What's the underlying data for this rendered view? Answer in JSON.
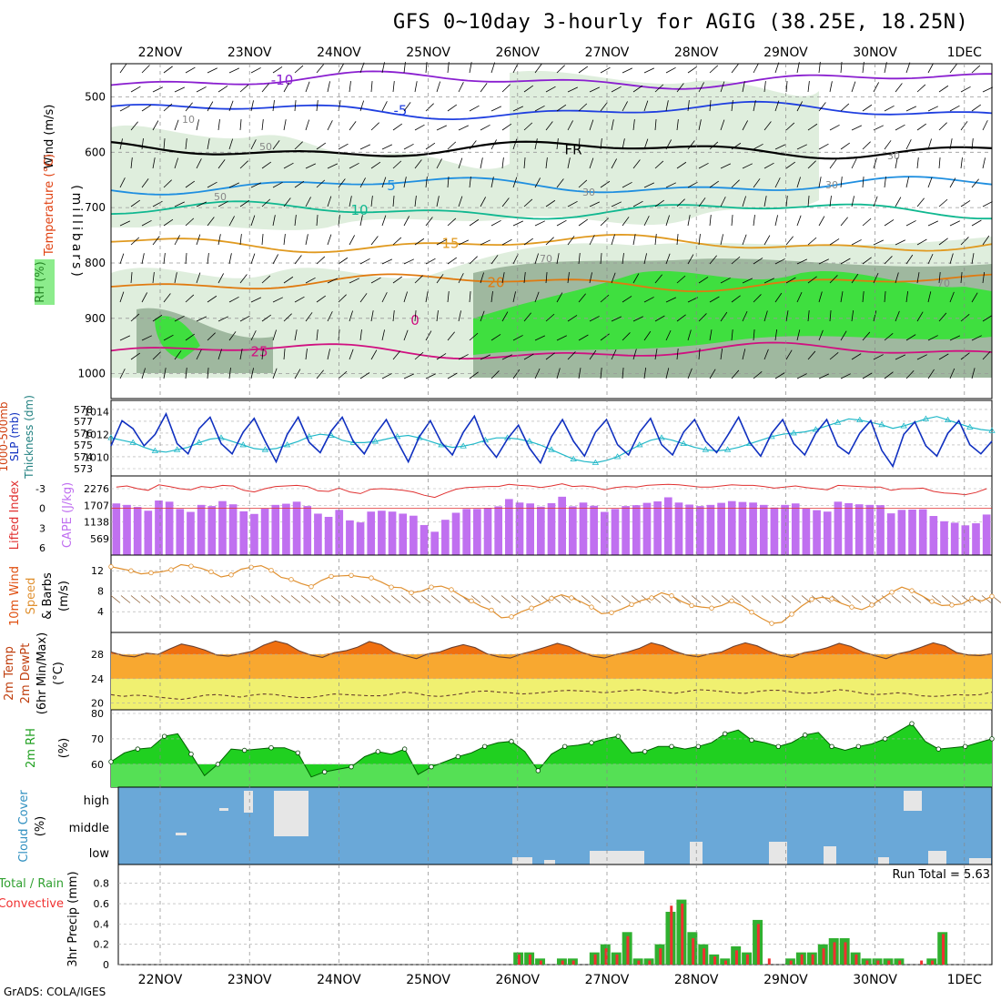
{
  "title": "GFS 0~10day 3-hourly for AGIG (38.25E, 18.25N)",
  "credit": "GrADS: COLA/IGES",
  "dates": [
    "22NOV",
    "23NOV",
    "24NOV",
    "25NOV",
    "26NOV",
    "27NOV",
    "28NOV",
    "29NOV",
    "30NOV",
    "1DEC"
  ],
  "colors": {
    "temp_minus10": "#8a1fd0",
    "temp_minus5": "#1f3fe0",
    "temp_fr": "#000000",
    "temp_5": "#1f8fe0",
    "temp_10": "#10b890",
    "temp_15": "#e09a20",
    "temp_20": "#e07a10",
    "temp_25": "#d01080",
    "rh_light": "#dfeedd",
    "rh_mid": "#9fb89f",
    "rh_green": "#3fdf3f",
    "slp": "#1030c0",
    "thickness": "#20b8c8",
    "cape": "#c070f0",
    "lifted": "#e03030",
    "wind10": "#e09030",
    "barb10": "#8a5a30",
    "temp_fill": "#f07010",
    "temp_band": "#f8a830",
    "dew_band": "#f0f070",
    "rh2m": "#20d020",
    "cloud_bg": "#6aa8d8",
    "cloud_fg": "#e6e6e6",
    "rain": "#30b030",
    "conv": "#f03030"
  },
  "chart_data": [
    {
      "type": "contour",
      "panel": "upper-air",
      "ylabel_parts": [
        "Wind (m/s)",
        "Temperature (°C)",
        "RH (%)",
        "(millibars)"
      ],
      "yticks": [
        500,
        600,
        700,
        800,
        900,
        1000
      ],
      "temperature_labels": [
        "-10",
        "-5",
        "FR",
        "5",
        "10",
        "15",
        "20",
        "25"
      ],
      "rh_labels": [
        "10",
        "30",
        "50",
        "70"
      ],
      "zero_label": "0",
      "temperature_levels_mb": {
        "-10": 470,
        "-5": 525,
        "FR": 595,
        "5": 660,
        "10": 705,
        "15": 765,
        "20": 835,
        "25": 960
      }
    },
    {
      "type": "line",
      "panel": "slp-thickness",
      "ylabel_parts": [
        "SLP (mb)",
        "Thickness (dm)",
        "1000-500mb"
      ],
      "yticks_left": [
        "573",
        "574",
        "575",
        "576",
        "577",
        "578"
      ],
      "yticks_right": [
        "1010",
        "1012",
        "1014"
      ],
      "slp": [
        1011,
        1013.2,
        1012.5,
        1011,
        1012,
        1013.8,
        1011.2,
        1010.3,
        1012.5,
        1013.5,
        1011.2,
        1010.3,
        1012.2,
        1013.4,
        1011.4,
        1009.6,
        1012,
        1013.5,
        1011.3,
        1010.4,
        1012.3,
        1013.5,
        1011.4,
        1010.3,
        1012,
        1013.3,
        1011.4,
        1009.6,
        1011.8,
        1013.2,
        1011.3,
        1010.2,
        1012.2,
        1013.6,
        1011.2,
        1010,
        1011.6,
        1012.8,
        1010.8,
        1009.5,
        1011.8,
        1013.3,
        1011.4,
        1010.1,
        1012.2,
        1013.3,
        1011.1,
        1010.2,
        1012.2,
        1013.4,
        1011.1,
        1010.2,
        1012.2,
        1013.3,
        1011.4,
        1010.4,
        1011.9,
        1013.5,
        1011.3,
        1010.1,
        1012.1,
        1013.3,
        1011.2,
        1010.2,
        1012.1,
        1013.3,
        1011,
        1010.3,
        1012.1,
        1013.2,
        1010.6,
        1009.2,
        1012,
        1013.1,
        1011,
        1010.1,
        1012.1,
        1013.2,
        1011.1,
        1010.3,
        1011.4
      ],
      "thickness": [
        575.6,
        575.4,
        575.2,
        574.8,
        574.5,
        574.4,
        574.6,
        574.8,
        575.2,
        575.5,
        575.6,
        575.3,
        575,
        574.7,
        574.6,
        574.7,
        575,
        575.3,
        575.7,
        575.9,
        575.8,
        575.4,
        575.2,
        575.2,
        575.3,
        575.5,
        575.7,
        575.8,
        575.6,
        575.3,
        575,
        574.8,
        574.9,
        575.1,
        575.4,
        575.6,
        575.6,
        575.5,
        575.3,
        575,
        574.6,
        574.2,
        573.8,
        573.6,
        573.5,
        573.7,
        574,
        574.5,
        575,
        575.4,
        575.6,
        575.4,
        575.1,
        574.8,
        574.6,
        574.5,
        574.6,
        574.8,
        575.1,
        575.4,
        575.7,
        575.9,
        576,
        576.1,
        576.3,
        576.6,
        576.9,
        577.2,
        577.1,
        576.9,
        576.7,
        576.4,
        576.6,
        576.9,
        577.2,
        577.4,
        577.1,
        576.8,
        576.5,
        576.3,
        576.2
      ]
    },
    {
      "type": "bar",
      "panel": "lifted-cape",
      "ylabel_parts": [
        "Lifted Index",
        "CAPE (J/kg)"
      ],
      "yticks_left": [
        "-3",
        "0",
        "3",
        "6"
      ],
      "yticks_right": [
        "569",
        "1138",
        "1707",
        "2276"
      ],
      "cape": [
        1770,
        1720,
        1650,
        1520,
        1870,
        1830,
        1580,
        1480,
        1720,
        1680,
        1850,
        1740,
        1500,
        1410,
        1590,
        1720,
        1760,
        1830,
        1680,
        1420,
        1310,
        1550,
        1190,
        1120,
        1490,
        1520,
        1490,
        1420,
        1350,
        1030,
        800,
        1210,
        1450,
        1580,
        1580,
        1620,
        1670,
        1920,
        1800,
        1770,
        1660,
        1780,
        2000,
        1670,
        1800,
        1690,
        1480,
        1580,
        1680,
        1710,
        1790,
        1840,
        1980,
        1800,
        1730,
        1680,
        1720,
        1790,
        1850,
        1820,
        1800,
        1720,
        1630,
        1720,
        1770,
        1590,
        1540,
        1490,
        1830,
        1780,
        1740,
        1720,
        1710,
        1430,
        1550,
        1560,
        1570,
        1340,
        1160,
        1110,
        1020,
        1090,
        1390
      ],
      "lifted_index": [
        -3.3,
        -3.5,
        -3.0,
        -2.7,
        -3.7,
        -3.4,
        -3.0,
        -2.8,
        -3.4,
        -3.2,
        -3.6,
        -3.5,
        -2.7,
        -2.4,
        -3.0,
        -3.4,
        -3.5,
        -3.6,
        -3.4,
        -2.6,
        -2.5,
        -3.1,
        -2.4,
        -2.1,
        -2.9,
        -3.0,
        -2.9,
        -2.7,
        -2.4,
        -1.8,
        -1.4,
        -2.2,
        -2.9,
        -3.2,
        -3.3,
        -3.4,
        -3.4,
        -3.8,
        -3.6,
        -3.5,
        -3.2,
        -3.5,
        -3.9,
        -3.4,
        -3.5,
        -3.3,
        -2.8,
        -3.2,
        -3.4,
        -3.3,
        -3.6,
        -3.7,
        -3.8,
        -3.7,
        -3.5,
        -3.3,
        -3.3,
        -3.5,
        -3.7,
        -3.6,
        -3.6,
        -3.4,
        -3.1,
        -3.3,
        -3.5,
        -3.2,
        -3.0,
        -2.8,
        -3.6,
        -3.5,
        -3.4,
        -3.3,
        -3.3,
        -2.7,
        -3.0,
        -3.0,
        -3.1,
        -2.5,
        -2.2,
        -2.1,
        -1.9,
        -2.3,
        -3.0
      ]
    },
    {
      "type": "line",
      "panel": "wind10m",
      "ylabel_parts": [
        "10m Wind",
        "Speed",
        "& Barbs",
        "(m/s)"
      ],
      "yticks": [
        "4",
        "8",
        "12"
      ],
      "speed": [
        12.8,
        12.4,
        12.0,
        11.4,
        11.6,
        11.8,
        12.2,
        13.2,
        12.9,
        12.5,
        11.8,
        10.8,
        11.2,
        12.3,
        12.7,
        13.0,
        12.1,
        10.7,
        10.3,
        9.5,
        8.9,
        10.1,
        10.9,
        11.0,
        11.1,
        10.8,
        10.6,
        9.8,
        8.8,
        8.7,
        7.7,
        8.0,
        8.8,
        9.0,
        8.3,
        7.1,
        6.1,
        5.0,
        4.3,
        2.8,
        3.0,
        4.0,
        4.7,
        5.5,
        6.6,
        7.3,
        6.7,
        5.9,
        4.9,
        3.6,
        3.8,
        4.5,
        5.4,
        6.2,
        6.7,
        7.7,
        7.1,
        6.0,
        5.2,
        4.9,
        4.7,
        5.2,
        6.1,
        5.2,
        3.9,
        2.7,
        1.7,
        1.9,
        3.5,
        5.1,
        6.4,
        6.8,
        6.5,
        5.6,
        4.9,
        4.4,
        5.3,
        6.6,
        7.8,
        8.8,
        8.1,
        7.1,
        6.0,
        5.2,
        5.3,
        5.5,
        6.6,
        6.1,
        7.0
      ]
    },
    {
      "type": "area",
      "panel": "temp2m",
      "ylabel_parts": [
        "2m Temp",
        "2m DewPt",
        "(6hr Min/Max)",
        "(°C)"
      ],
      "yticks": [
        "20",
        "24",
        "28"
      ],
      "temp": [
        28.4,
        27.8,
        27.6,
        28.2,
        28.0,
        28.9,
        29.7,
        29.3,
        28.7,
        27.9,
        27.7,
        28.1,
        28.5,
        29.5,
        30.2,
        29.7,
        28.6,
        27.9,
        27.5,
        28.3,
        28.6,
        29.2,
        30.1,
        29.6,
        28.4,
        27.8,
        27.3,
        28.1,
        28.4,
        29.1,
        29.6,
        29.1,
        28.1,
        27.6,
        27.4,
        28.1,
        28.6,
        29.2,
        29.8,
        29.3,
        28.4,
        27.7,
        27.4,
        28.0,
        28.4,
        29.0,
        29.9,
        29.4,
        28.5,
        27.9,
        27.6,
        28.1,
        28.4,
        29.3,
        29.9,
        29.4,
        28.5,
        27.8,
        27.5,
        28.3,
        28.6,
        29.1,
        29.8,
        29.3,
        28.4,
        27.8,
        27.3,
        28.1,
        28.5,
        29.2,
        29.9,
        29.4,
        28.3,
        27.9,
        27.8,
        28.1
      ],
      "dewpoint": [
        21.4,
        21.1,
        21.3,
        21.2,
        21.0,
        20.8,
        20.6,
        20.9,
        21.3,
        21.4,
        21.2,
        21.0,
        21.3,
        21.5,
        21.4,
        21.1,
        20.9,
        20.9,
        21.2,
        21.5,
        21.4,
        21.3,
        21.2,
        21.2,
        21.5,
        21.8,
        21.6,
        21.2,
        21.1,
        21.3,
        21.6,
        21.9,
        22.0,
        21.8,
        21.7,
        21.5,
        21.6,
        21.8,
        22.0,
        22.1,
        22.0,
        21.9,
        21.7,
        21.9,
        22.1,
        22.2,
        22.0,
        21.8,
        21.6,
        21.9,
        22.2,
        22.1,
        21.9,
        21.7,
        21.6,
        21.9,
        22.1,
        22.1,
        21.8,
        21.6,
        21.7,
        21.9,
        22.2,
        22.0,
        21.6,
        21.4,
        21.5,
        21.7,
        21.5,
        21.2,
        21.1,
        21.2,
        21.4,
        21.3,
        21.4,
        21.8
      ]
    },
    {
      "type": "area",
      "panel": "rh2m",
      "ylabel_parts": [
        "2m RH",
        "(%)"
      ],
      "yticks": [
        "60",
        "70",
        "80"
      ],
      "values": [
        61.0,
        64.5,
        66.0,
        66.5,
        71.0,
        72.0,
        64.0,
        55.5,
        60.0,
        66.0,
        65.5,
        66.0,
        66.5,
        66.5,
        64.5,
        55.0,
        57.0,
        58.0,
        59.0,
        63.0,
        65.0,
        64.0,
        66.0,
        56.0,
        59.0,
        61.0,
        63.0,
        64.5,
        67.0,
        68.5,
        69.0,
        65.0,
        57.5,
        64.0,
        67.0,
        67.5,
        68.5,
        70.0,
        71.0,
        64.5,
        65.0,
        67.0,
        67.0,
        66.0,
        67.0,
        68.5,
        72.0,
        73.5,
        69.5,
        68.5,
        67.0,
        68.5,
        71.5,
        72.5,
        67.0,
        65.5,
        67.0,
        68.0,
        70.0,
        73.0,
        76.0,
        69.0,
        66.0,
        66.5,
        67.0,
        68.5,
        70.0
      ],
      "markers": true
    },
    {
      "type": "heatmap",
      "panel": "cloud",
      "ylabel_parts": [
        "Cloud Cover",
        "(%)"
      ],
      "ytick_labels": [
        "high",
        "middle",
        "low"
      ]
    },
    {
      "type": "bar",
      "panel": "precip",
      "ylabel_parts": [
        "Total / Rain",
        "Convective",
        "3hr Precip (mm)"
      ],
      "yticks": [
        "0",
        "0.2",
        "0.4",
        "0.6",
        "0.8"
      ],
      "annotation": "Run Total = 5.63",
      "x_start_index": 36,
      "total": [
        0.12,
        0.12,
        0.06,
        0,
        0.06,
        0.06,
        0,
        0.12,
        0.2,
        0.12,
        0.32,
        0.06,
        0.06,
        0.2,
        0.52,
        0.64,
        0.32,
        0.2,
        0.1,
        0.06,
        0.18,
        0.12,
        0.44,
        0,
        0,
        0.06,
        0.12,
        0.12,
        0.2,
        0.26,
        0.26,
        0.12,
        0.06,
        0.06,
        0.06,
        0.06,
        0,
        0,
        0.06,
        0.32
      ],
      "convective": [
        0.1,
        0.1,
        0.04,
        0,
        0.04,
        0.04,
        0,
        0.1,
        0.16,
        0.1,
        0.28,
        0.04,
        0.04,
        0.16,
        0.58,
        0.6,
        0.26,
        0.16,
        0.08,
        0.04,
        0.14,
        0.1,
        0.4,
        0.06,
        0,
        0.04,
        0.1,
        0.1,
        0.16,
        0.22,
        0.22,
        0.1,
        0.04,
        0.04,
        0.04,
        0.04,
        0,
        0.04,
        0.04,
        0.3
      ]
    }
  ]
}
